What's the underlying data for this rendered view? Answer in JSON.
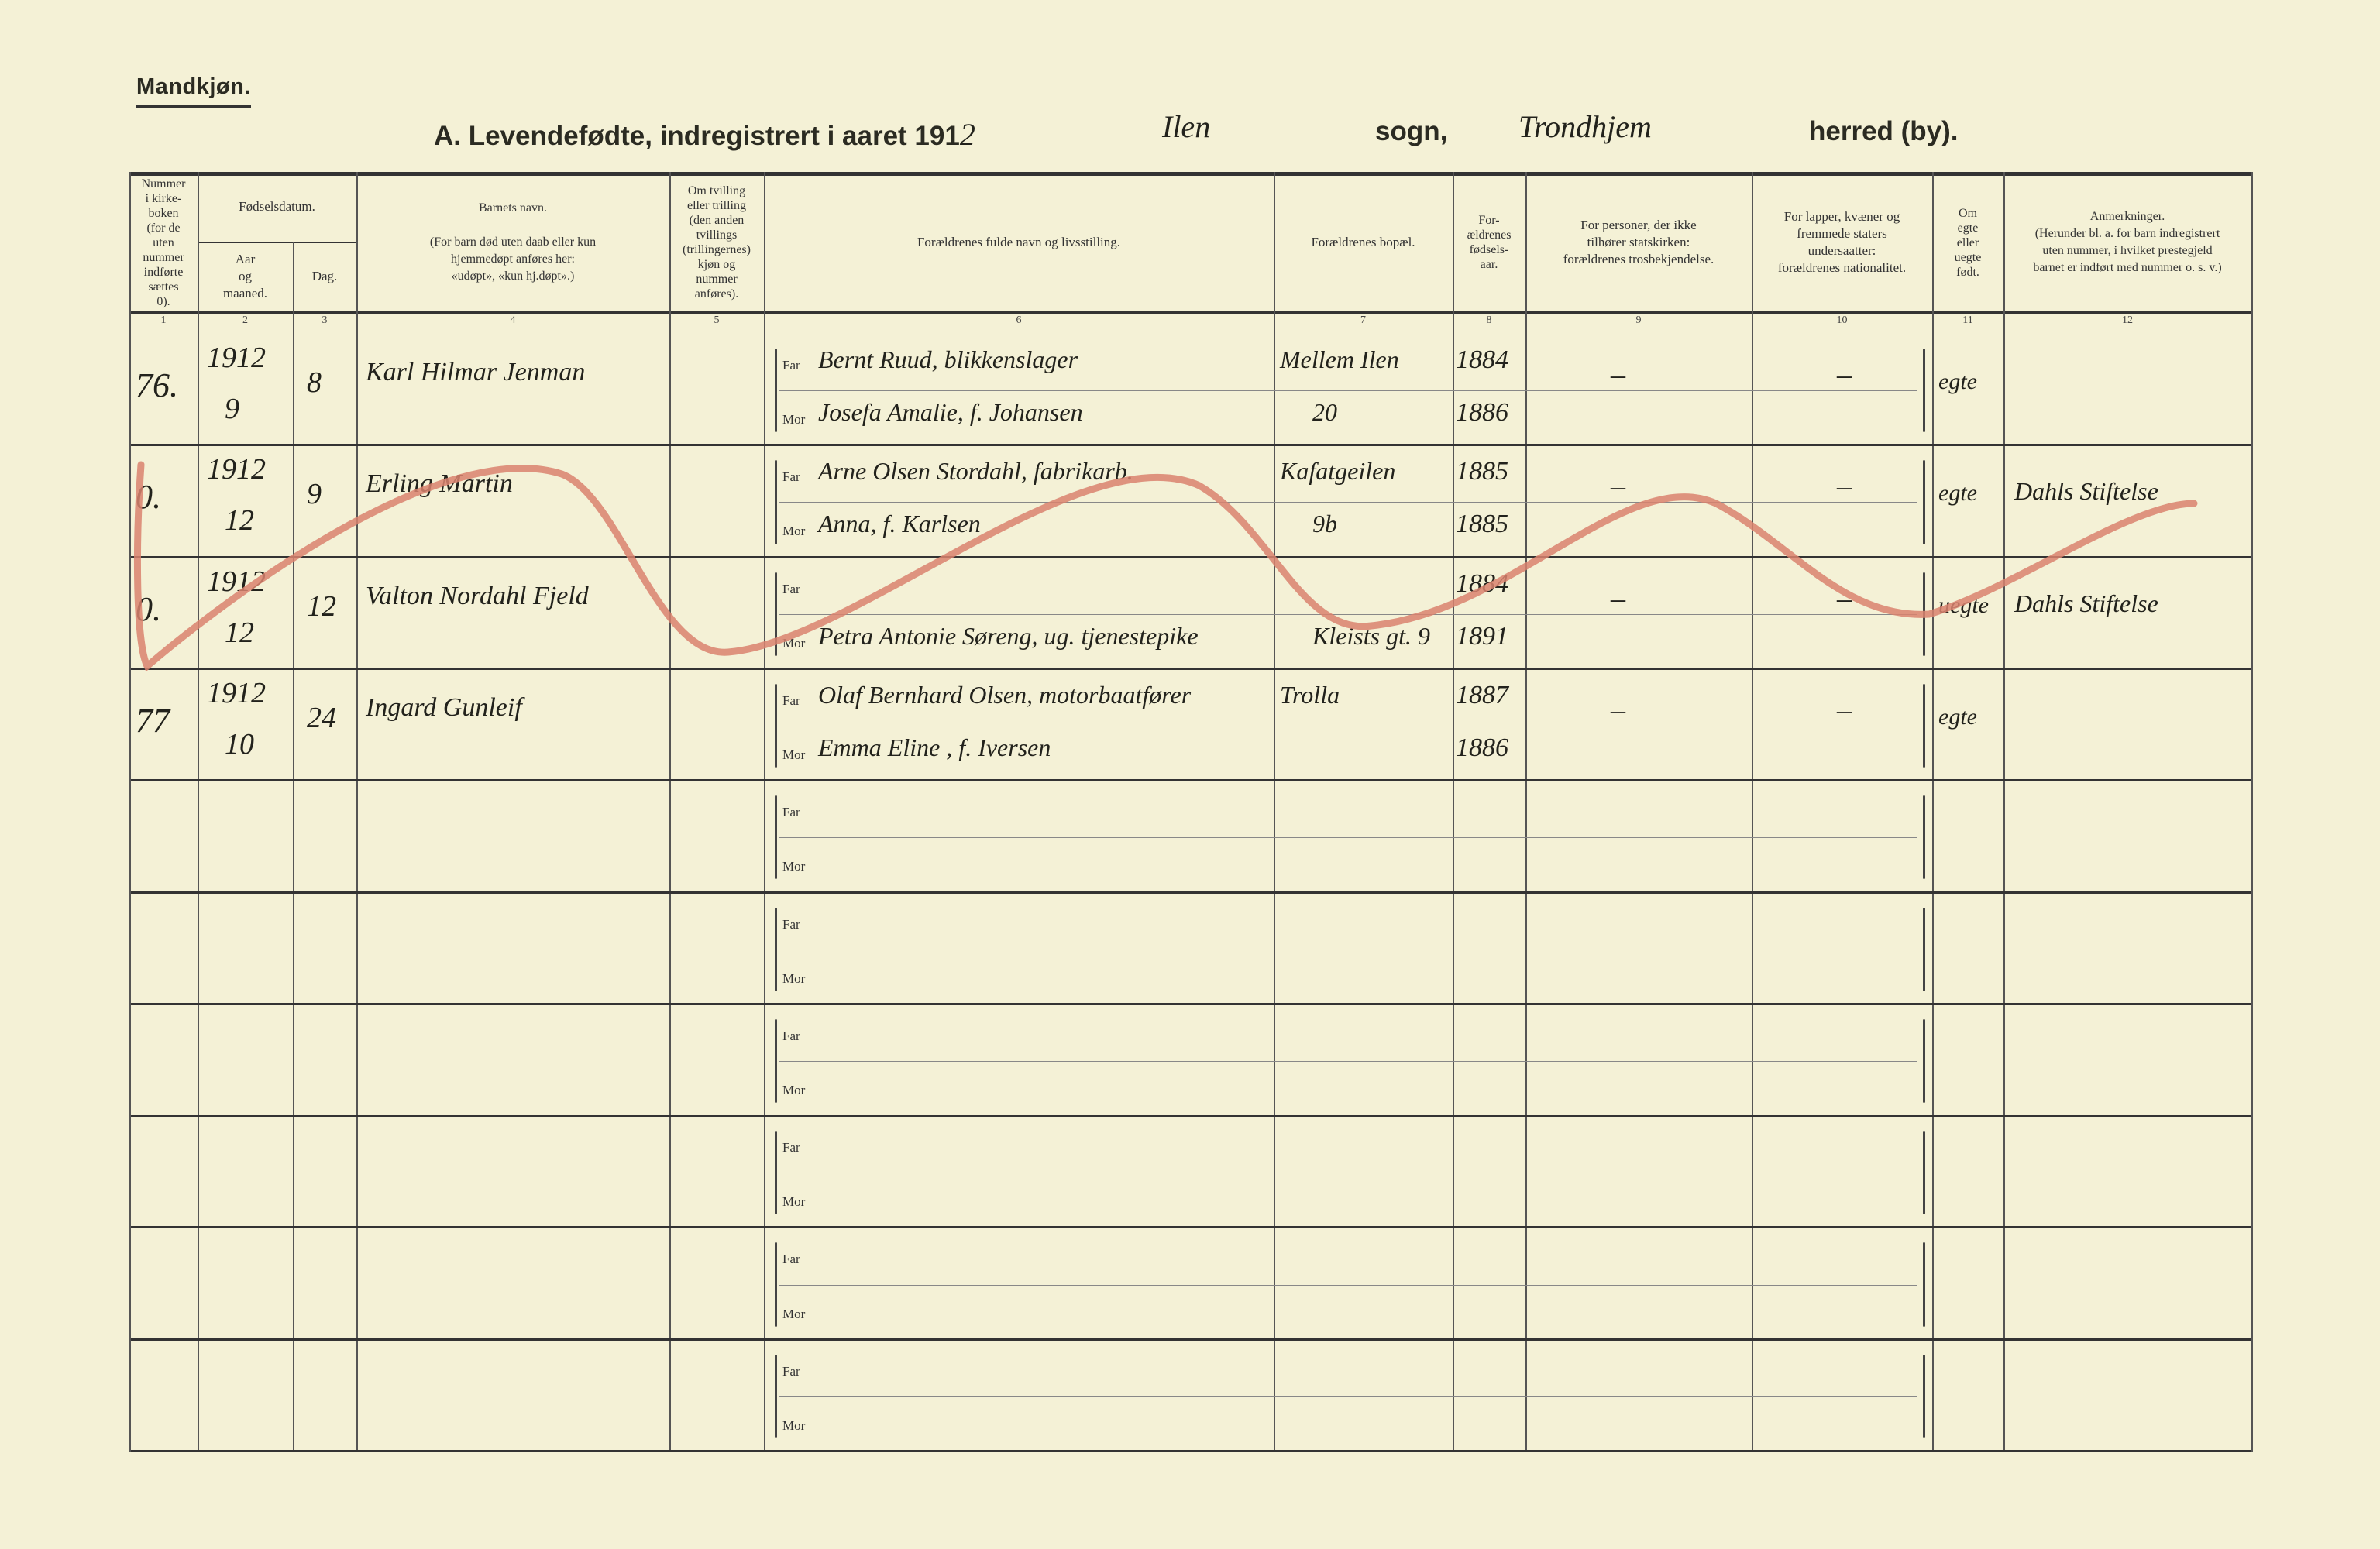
{
  "header": {
    "gender": "Mandkjøn.",
    "title": "A. Levendefødte, indregistrert i aaret 191",
    "year_digit": "2",
    "parish": "Ilen",
    "sogn_label": "sogn,",
    "district": "Trondhjem",
    "herred_label": "herred (by)."
  },
  "columns": [
    {
      "num": "1",
      "label": "Nummer\ni kirke-\nboken\n(for de\nuten\nnummer\nindførte\nsættes\n0)."
    },
    {
      "num": "2",
      "label": "Aar\nog\nmaaned."
    },
    {
      "num": "3",
      "label": "Dag."
    },
    {
      "num": "4",
      "label": "Barnets navn.\n\n(For barn død uten daab eller kun\nhjemmedøpt anføres her:\n«udøpt», «kun hj.døpt».)"
    },
    {
      "num": "5",
      "label": "Om tvilling\neller trilling\n(den anden\ntvillings\n(trillingernes)\nkjøn og\nnummer\nanføres)."
    },
    {
      "num": "6",
      "label": "Forældrenes fulde navn og livsstilling."
    },
    {
      "num": "7",
      "label": "Forældrenes bopæl."
    },
    {
      "num": "8",
      "label": "For-\nældrenes\nfødsels-\naar."
    },
    {
      "num": "9",
      "label": "For personer, der ikke\ntilhører statskirken:\nforældrenes trosbekjendelse."
    },
    {
      "num": "10",
      "label": "For lapper, kvæner og\nfremmede staters\nundersaatter:\nforældrenes nationalitet."
    },
    {
      "num": "11",
      "label": "Om\negte\neller\nuegte\nfødt."
    },
    {
      "num": "12",
      "label": "Anmerkninger.\n(Herunder bl. a. for barn indregistrert\nuten nummer, i hvilket prestegjeld\nbarnet er indført med nummer o. s. v.)"
    }
  ],
  "group_header": "Fødselsdatum.",
  "far_label": "Far",
  "mor_label": "Mor",
  "rows": [
    {
      "number": "76.",
      "year": "1912",
      "month": "9",
      "day": "8",
      "name": "Karl Hilmar Jenman",
      "far": "Bernt Ruud, blikkenslager",
      "mor": "Josefa Amalie, f. Johansen",
      "address": "Mellem Ilen",
      "address2": "20",
      "far_born": "1884",
      "mor_born": "1886",
      "faith": "–",
      "nationality": "–",
      "legitimacy": "egte",
      "remarks": "",
      "struck": false
    },
    {
      "number": "0.",
      "year": "1912",
      "month": "12",
      "day": "9",
      "name": "Erling Martin",
      "far": "Arne Olsen Stordahl, fabrikarb.",
      "mor": "Anna, f. Karlsen",
      "address": "Kafatgeilen",
      "address2": "9b",
      "far_born": "1885",
      "mor_born": "1885",
      "faith": "–",
      "nationality": "–",
      "legitimacy": "egte",
      "remarks": "Dahls Stiftelse",
      "struck": true
    },
    {
      "number": "0.",
      "year": "1912",
      "month": "12",
      "day": "12",
      "name": "Valton Nordahl Fjeld",
      "far": "",
      "mor": "Petra Antonie Søreng, ug. tjenestepike",
      "address": "",
      "address2": "Kleists gt. 9",
      "far_born": "1884",
      "mor_born": "1891",
      "faith": "–",
      "nationality": "–",
      "legitimacy": "uegte",
      "remarks": "Dahls Stiftelse",
      "struck": true
    },
    {
      "number": "77",
      "year": "1912",
      "month": "10",
      "day": "24",
      "name": "Ingard Gunleif",
      "far": "Olaf Bernhard Olsen, motorbaatfører",
      "mor": "Emma Eline , f. Iversen",
      "address": "Trolla",
      "address2": "",
      "far_born": "1887",
      "mor_born": "1886",
      "faith": "–",
      "nationality": "–",
      "legitimacy": "egte",
      "remarks": "",
      "struck": false
    },
    {},
    {},
    {},
    {},
    {},
    {}
  ],
  "colors": {
    "paper": "#f4f1d6",
    "ink": "#22221c",
    "strike_crayon": "#d9826e"
  }
}
